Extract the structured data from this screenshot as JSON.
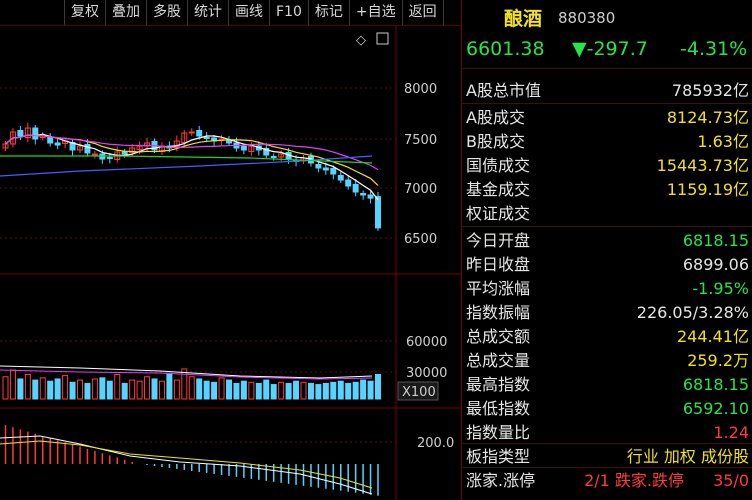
{
  "toolbar": {
    "buttons": [
      "复权",
      "叠加",
      "多股",
      "统计",
      "画线",
      "F10",
      "标记",
      "+自选",
      "返回"
    ]
  },
  "chart_labels": {
    "price_ticks": [
      "8000",
      "7500",
      "7000",
      "6500"
    ],
    "vol_ticks": [
      "60000",
      "30000"
    ],
    "vol_unit": "X100",
    "macd_tick": "200.0"
  },
  "header": {
    "name": "酿酒",
    "code": "880380",
    "price": "6601.38",
    "change": "▼-297.7",
    "pct": "-4.31%"
  },
  "rows": [
    {
      "label": "A股总市值",
      "value": "785932亿",
      "color": "white"
    },
    {
      "label": "A股成交",
      "value": "8124.73亿",
      "color": "yellow"
    },
    {
      "label": "B股成交",
      "value": "1.63亿",
      "color": "yellow"
    },
    {
      "label": "国债成交",
      "value": "15443.73亿",
      "color": "yellow"
    },
    {
      "label": "基金成交",
      "value": "1159.19亿",
      "color": "yellow"
    },
    {
      "label": "权证成交",
      "value": "",
      "color": "yellow"
    },
    {
      "label": "今日开盘",
      "value": "6818.15",
      "color": "green"
    },
    {
      "label": "昨日收盘",
      "value": "6899.06",
      "color": "white"
    },
    {
      "label": "平均涨幅",
      "value": "-1.95%",
      "color": "green"
    },
    {
      "label": "指数振幅",
      "value": "226.05/3.28%",
      "color": "white"
    },
    {
      "label": "总成交额",
      "value": "244.41亿",
      "color": "yellow"
    },
    {
      "label": "总成交量",
      "value": "259.2万",
      "color": "yellow"
    },
    {
      "label": "最高指数",
      "value": "6818.15",
      "color": "green"
    },
    {
      "label": "最低指数",
      "value": "6592.10",
      "color": "green"
    },
    {
      "label": "指数量比",
      "value": "1.24",
      "color": "red"
    },
    {
      "label": "板指类型",
      "value": "行业 加权 成份股",
      "color": "yellow"
    },
    {
      "label": "涨家.涨停",
      "value": "2/1 跌家.跌停",
      "value2": "35/0",
      "color": "red"
    }
  ],
  "chart_data": {
    "type": "candlestick",
    "price_axis": [
      6500,
      7000,
      7500,
      8000
    ],
    "volume_axis": [
      30000,
      60000
    ],
    "macd_axis": [
      200.0
    ]
  },
  "colors": {
    "up": "#ff3b3b",
    "down": "#54d4ff",
    "ma1": "#ffffff",
    "ma2": "#f3e21b",
    "ma3": "#e040fb",
    "ma4": "#23d323",
    "ma5": "#4060ff"
  }
}
